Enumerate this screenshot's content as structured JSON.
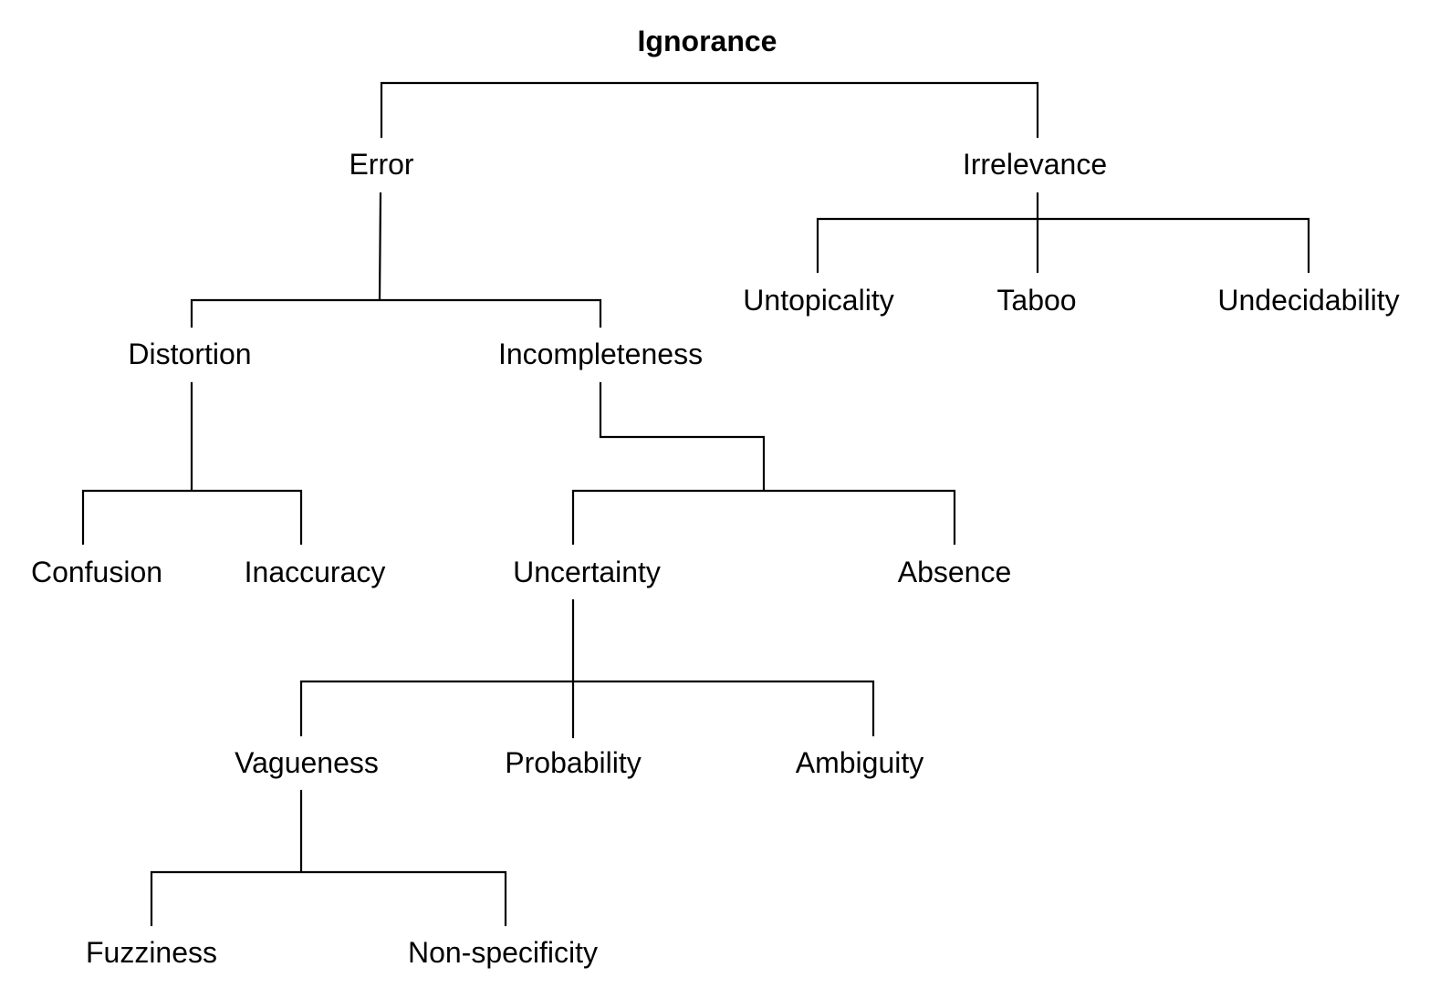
{
  "diagram": {
    "type": "tree",
    "root": "Ignorance",
    "nodes": [
      {
        "id": "ignorance",
        "label": "Ignorance"
      },
      {
        "id": "error",
        "label": "Error"
      },
      {
        "id": "irrelevance",
        "label": "Irrelevance"
      },
      {
        "id": "untopicality",
        "label": "Untopicality"
      },
      {
        "id": "taboo",
        "label": "Taboo"
      },
      {
        "id": "undecidability",
        "label": "Undecidability"
      },
      {
        "id": "distortion",
        "label": "Distortion"
      },
      {
        "id": "incompleteness",
        "label": "Incompleteness"
      },
      {
        "id": "confusion",
        "label": "Confusion"
      },
      {
        "id": "inaccuracy",
        "label": "Inaccuracy"
      },
      {
        "id": "uncertainty",
        "label": "Uncertainty"
      },
      {
        "id": "absence",
        "label": "Absence"
      },
      {
        "id": "vagueness",
        "label": "Vagueness"
      },
      {
        "id": "probability",
        "label": "Probability"
      },
      {
        "id": "ambiguity",
        "label": "Ambiguity"
      },
      {
        "id": "fuzziness",
        "label": "Fuzziness"
      },
      {
        "id": "nonspecificity",
        "label": "Non-specificity"
      }
    ],
    "edges": [
      {
        "from": "ignorance",
        "to": [
          "error",
          "irrelevance"
        ]
      },
      {
        "from": "irrelevance",
        "to": [
          "untopicality",
          "taboo",
          "undecidability"
        ]
      },
      {
        "from": "error",
        "to": [
          "distortion",
          "incompleteness"
        ]
      },
      {
        "from": "distortion",
        "to": [
          "confusion",
          "inaccuracy"
        ]
      },
      {
        "from": "incompleteness",
        "to": [
          "uncertainty",
          "absence"
        ]
      },
      {
        "from": "uncertainty",
        "to": [
          "vagueness",
          "probability",
          "ambiguity"
        ]
      },
      {
        "from": "vagueness",
        "to": [
          "fuzziness",
          "nonspecificity"
        ]
      }
    ]
  }
}
